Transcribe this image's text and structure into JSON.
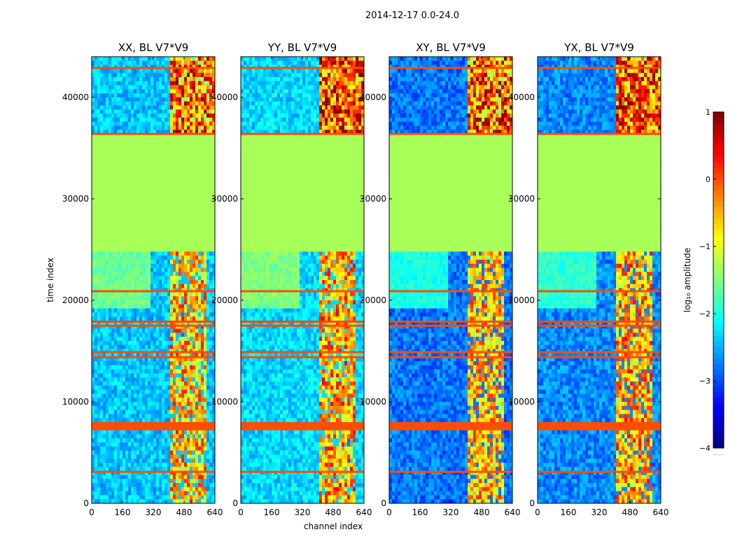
{
  "chart_data": {
    "type": "heatmap",
    "suptitle": "2014-12-17 0.0-24.0",
    "xlabel": "channel index",
    "ylabel": "time index",
    "xlim": [
      0,
      640
    ],
    "ylim": [
      0,
      44000
    ],
    "xticks": [
      "0",
      "160",
      "320",
      "480",
      "640"
    ],
    "yticks": [
      "0",
      "10000",
      "20000",
      "30000",
      "40000"
    ],
    "xtick_values": [
      0,
      160,
      320,
      480,
      640
    ],
    "ytick_values": [
      0,
      10000,
      20000,
      30000,
      40000
    ],
    "panels": [
      {
        "title": "XX, BL V7*V9",
        "base": -2.4,
        "band_lo": -1.5,
        "band_hi": 0.3,
        "bright_top": 0.4
      },
      {
        "title": "YY, BL V7*V9",
        "base": -2.3,
        "band_lo": -1.3,
        "band_hi": 0.4,
        "bright_top": 0.6
      },
      {
        "title": "XY, BL V7*V9",
        "base": -2.8,
        "band_lo": -1.4,
        "band_hi": 0.2,
        "bright_top": 0.5
      },
      {
        "title": "YX, BL V7*V9",
        "base": -2.7,
        "band_lo": -1.3,
        "band_hi": 0.4,
        "bright_top": 0.5
      }
    ],
    "flat_block": {
      "t_start": 24800,
      "t_end": 36400,
      "value": -1.3
    },
    "rfi_band": {
      "channel_start": 410,
      "channel_end": 600
    },
    "flag_rows": [
      7400,
      7600,
      7800,
      8000,
      14500,
      15000,
      17600,
      18000,
      21000,
      3200,
      36500,
      43000
    ],
    "colorbar": {
      "label": "log₁₀ amplitude",
      "min": -4,
      "max": 1,
      "ticks": [
        "−4",
        "−3",
        "−2",
        "−1",
        "0",
        "1"
      ],
      "tick_values": [
        -4,
        -3,
        -2,
        -1,
        0,
        1
      ],
      "extra_note": "......"
    }
  }
}
